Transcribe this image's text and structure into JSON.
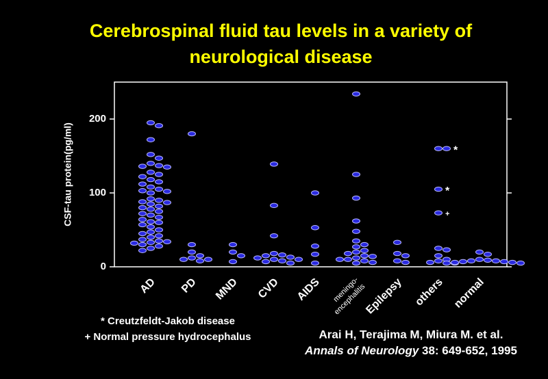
{
  "chart_data": {
    "type": "strip",
    "title": [
      "Cerebrospinal fluid tau levels in a variety of",
      "neurological disease"
    ],
    "y_label": "CSF-tau protein(pg/ml)",
    "ylim": [
      0,
      250
    ],
    "yticks": [
      0,
      100,
      200
    ],
    "marker_fill": "#2a2ae0",
    "marker_stroke": "#b8b8ff",
    "groups": [
      {
        "category": "AD",
        "values": [
          195,
          191,
          172,
          152,
          147,
          140,
          137,
          136,
          135,
          128,
          125,
          122,
          118,
          115,
          112,
          108,
          105,
          103,
          102,
          100,
          92,
          90,
          88,
          87,
          85,
          82,
          80,
          78,
          75,
          72,
          70,
          67,
          64,
          61,
          60,
          57,
          54,
          50,
          47,
          45,
          42,
          40,
          37,
          35,
          34,
          33,
          32,
          30,
          28,
          25,
          22
        ]
      },
      {
        "category": "PD",
        "values": [
          180,
          30,
          20,
          15,
          12,
          10,
          10,
          8
        ]
      },
      {
        "category": "MND",
        "values": [
          30,
          20,
          15,
          7
        ]
      },
      {
        "category": "CVD",
        "values": [
          139,
          83,
          42,
          18,
          16,
          15,
          13,
          12,
          10,
          10,
          8,
          7,
          5
        ]
      },
      {
        "category": "AIDS",
        "values": [
          100,
          53,
          28,
          17,
          5
        ]
      },
      {
        "category": "meningo-\nencephalitis",
        "values": [
          234,
          125,
          93,
          62,
          48,
          35,
          30,
          27,
          22,
          20,
          18,
          15,
          14,
          12,
          10,
          10,
          8,
          6,
          5
        ]
      },
      {
        "category": "Epilepsy",
        "values": [
          33,
          18,
          15,
          8,
          6
        ]
      },
      {
        "category": "others",
        "values": [
          160,
          160,
          105,
          73,
          25,
          23,
          15,
          10,
          8,
          6,
          5
        ],
        "point_labels": [
          null,
          "*",
          "*",
          "+",
          null,
          null,
          null,
          null,
          null,
          null,
          null
        ]
      },
      {
        "category": "normal",
        "values": [
          20,
          17,
          10,
          9,
          8,
          8,
          7,
          7,
          6,
          6,
          5,
          5
        ]
      }
    ],
    "notes": [
      "* Creutzfeldt-Jakob disease",
      "+ Normal pressure hydrocephalus"
    ],
    "citation": {
      "authors": "Arai H, Terajima M, Miura M. et al.",
      "journal": "Annals of Neurology",
      "details": " 38: 649-652, 1995"
    }
  }
}
